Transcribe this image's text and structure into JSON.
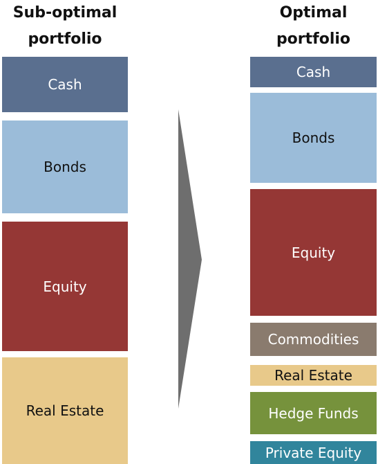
{
  "left": {
    "title_line1": "Sub-optimal",
    "title_line2": "portfolio",
    "blocks": [
      "Cash",
      "Bonds",
      "Equity",
      "Real Estate"
    ]
  },
  "right": {
    "title_line1": "Optimal",
    "title_line2": "portfolio",
    "blocks": [
      "Cash",
      "Bonds",
      "Equity",
      "Commodities",
      "Real Estate",
      "Hedge Funds",
      "Private Equity"
    ]
  }
}
